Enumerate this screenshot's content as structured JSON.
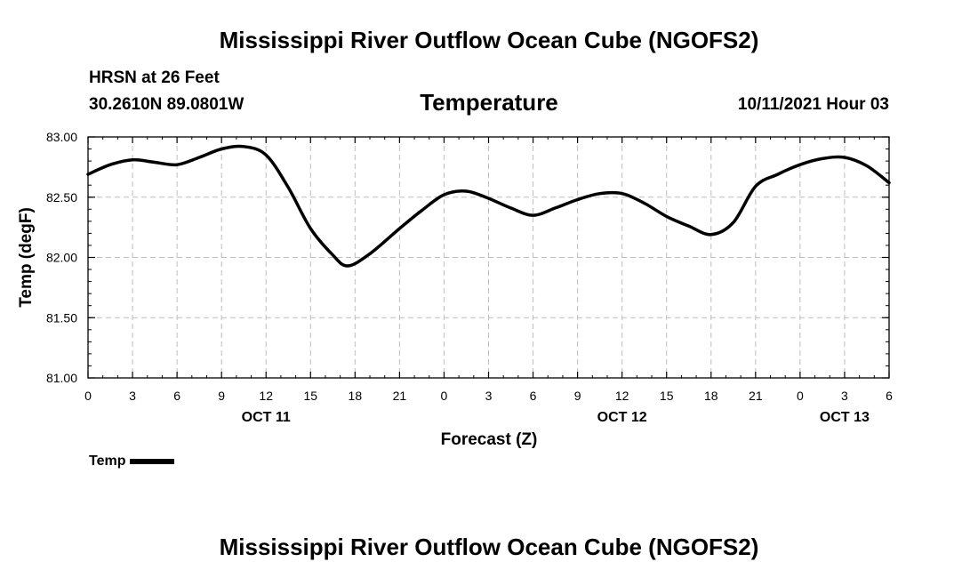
{
  "header": {
    "main_title": "Mississippi River Outflow Ocean Cube (NGOFS2)",
    "station": "HRSN at 26 Feet",
    "coords": "30.2610N  89.0801W",
    "datetime": "10/11/2021 Hour 03",
    "footer_title": "Mississippi River Outflow Ocean Cube (NGOFS2)"
  },
  "chart_data": {
    "type": "line",
    "title": "Temperature",
    "xlabel": "Forecast (Z)",
    "ylabel": "Temp (degF)",
    "xlim": [
      0,
      54
    ],
    "ylim": [
      81.0,
      83.0
    ],
    "yticks": [
      "81.00",
      "81.50",
      "82.00",
      "82.50",
      "83.00"
    ],
    "ytick_values": [
      81.0,
      81.5,
      82.0,
      82.5,
      83.0
    ],
    "xtick_values": [
      0,
      3,
      6,
      9,
      12,
      15,
      18,
      21,
      24,
      27,
      30,
      33,
      36,
      39,
      42,
      45,
      48,
      51,
      54
    ],
    "xtick_labels": [
      "0",
      "3",
      "6",
      "9",
      "12",
      "15",
      "18",
      "21",
      "0",
      "3",
      "6",
      "9",
      "12",
      "15",
      "18",
      "21",
      "0",
      "3",
      "6"
    ],
    "date_labels": [
      {
        "x": 12,
        "label": "OCT 11"
      },
      {
        "x": 36,
        "label": "OCT 12"
      },
      {
        "x": 51,
        "label": "OCT 13"
      }
    ],
    "grid": true,
    "legend_position": "bottom-left",
    "series": [
      {
        "name": "Temp",
        "color": "#000000",
        "x": [
          0,
          1.5,
          3,
          4.5,
          6,
          7.5,
          9,
          10.5,
          12,
          13.5,
          15,
          16.5,
          17.5,
          19,
          21,
          22.5,
          24,
          25.5,
          27,
          28.5,
          30,
          31.5,
          33,
          34.5,
          36,
          37.5,
          39,
          40.5,
          42,
          43.5,
          45,
          46.5,
          48,
          49.5,
          51,
          52.5,
          54
        ],
        "values": [
          82.69,
          82.77,
          82.81,
          82.79,
          82.77,
          82.83,
          82.9,
          82.92,
          82.85,
          82.58,
          82.24,
          82.02,
          81.93,
          82.03,
          82.24,
          82.39,
          82.52,
          82.55,
          82.49,
          82.41,
          82.35,
          82.41,
          82.48,
          82.53,
          82.53,
          82.45,
          82.34,
          82.26,
          82.19,
          82.29,
          82.59,
          82.69,
          82.77,
          82.82,
          82.83,
          82.76,
          82.62
        ]
      }
    ]
  }
}
